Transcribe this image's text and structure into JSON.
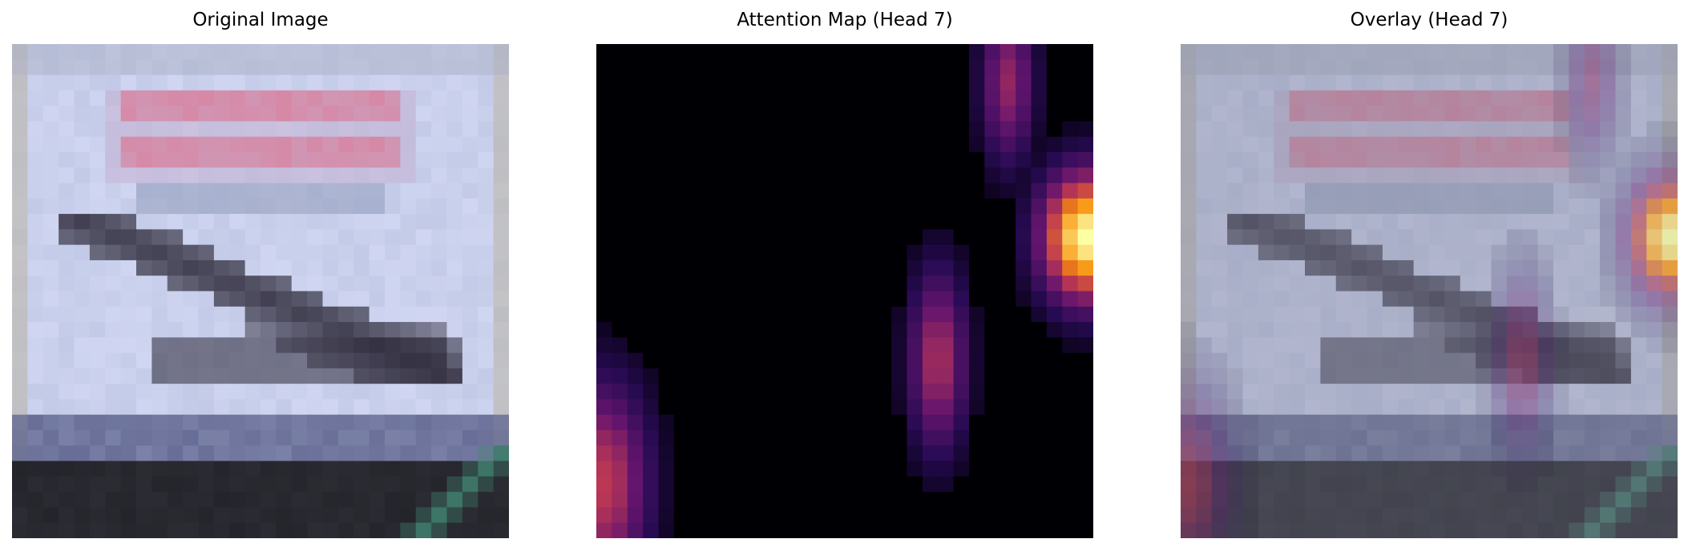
{
  "chart_data": [
    {
      "type": "heatmap",
      "title": "Original Image"
    },
    {
      "type": "heatmap",
      "title": "Attention Map (Head 7)",
      "colormap": "inferno",
      "hotspots": [
        {
          "label": "right edge",
          "peak": 1.0
        },
        {
          "label": "center-right ellipse",
          "peak": 0.55
        },
        {
          "label": "bottom-left edge",
          "peak": 0.6
        },
        {
          "label": "top-right column",
          "peak": 0.5
        }
      ]
    },
    {
      "type": "heatmap",
      "title": "Overlay (Head 7)"
    }
  ],
  "colors": {
    "background": "#ffffff",
    "sky": "#c9d0ec",
    "banner_pink": "#d77a98",
    "plane_dark": "#2a2636",
    "ground_dark": "#23242a",
    "stripe_teal": "#3f7d6c"
  }
}
